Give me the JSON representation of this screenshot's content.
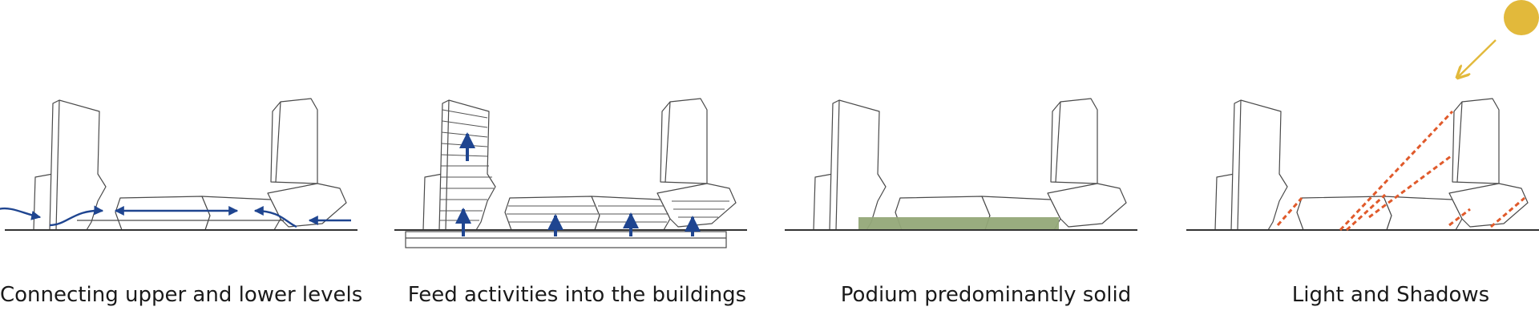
{
  "panels": [
    {
      "caption": "Connecting upper and lower levels",
      "overlay": "circulation-arrows"
    },
    {
      "caption": "Feed activities into the buildings",
      "overlay": "vertical-feed-arrows"
    },
    {
      "caption": "Podium predominantly solid",
      "overlay": "solid-podium"
    },
    {
      "caption": "Light and Shadows",
      "overlay": "sun-and-shadows"
    }
  ],
  "colors": {
    "arrow": "#1f4590",
    "podium_fill": "#94a878",
    "sun": "#e2b93b",
    "shadow": "#e05a2b",
    "building_stroke": "#4a4a4a",
    "ground": "#333333"
  },
  "icons": [
    "sun-icon",
    "arrow-icon"
  ]
}
